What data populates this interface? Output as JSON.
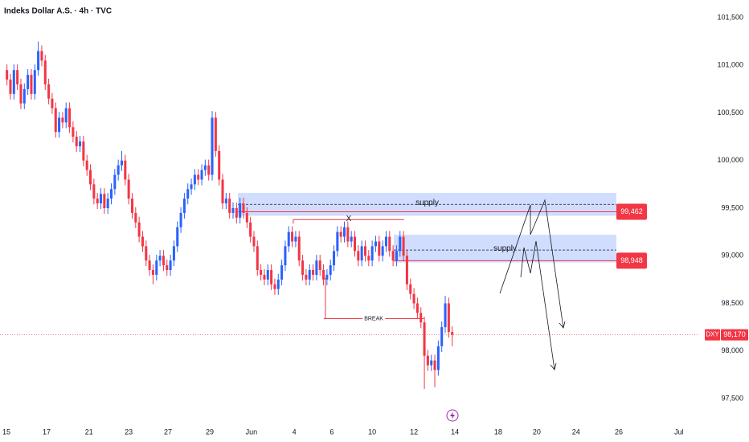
{
  "chart_data": {
    "type": "candlestick",
    "title": "Indeks Dollar A.S. · 4h · TVC",
    "up_color": "#2962ff",
    "down_color": "#f23645",
    "xlim": [
      -2,
      199
    ],
    "ylim": [
      97.255,
      101.686
    ],
    "xticks": [
      {
        "value": -0.15,
        "label": "15"
      },
      {
        "value": 11.4,
        "label": "17"
      },
      {
        "value": 23.6,
        "label": "21"
      },
      {
        "value": 35,
        "label": "23"
      },
      {
        "value": 46.3,
        "label": "27"
      },
      {
        "value": 58.3,
        "label": "29"
      },
      {
        "value": 70.3,
        "label": "Jun"
      },
      {
        "value": 82.6,
        "label": "4"
      },
      {
        "value": 93.4,
        "label": "6"
      },
      {
        "value": 105,
        "label": "10"
      },
      {
        "value": 117,
        "label": "12"
      },
      {
        "value": 128.8,
        "label": "14"
      },
      {
        "value": 141.2,
        "label": "18"
      },
      {
        "value": 152.3,
        "label": "20"
      },
      {
        "value": 163.6,
        "label": "24"
      },
      {
        "value": 175.9,
        "label": "26"
      },
      {
        "value": 193.2,
        "label": "Jul"
      }
    ],
    "yticks": [
      {
        "value": 101.5,
        "label": "101,500"
      },
      {
        "value": 101,
        "label": "101,000"
      },
      {
        "value": 100.5,
        "label": "100,500"
      },
      {
        "value": 100,
        "label": "100,000"
      },
      {
        "value": 99.5,
        "label": "99,500"
      },
      {
        "value": 99,
        "label": "99,000"
      },
      {
        "value": 98.5,
        "label": "98,500"
      },
      {
        "value": 98,
        "label": "98,000"
      },
      {
        "value": 97.5,
        "label": "97,500"
      }
    ],
    "ohlc": [
      [
        100.95,
        101.01,
        100.79,
        100.85
      ],
      [
        100.85,
        100.91,
        100.64,
        100.7
      ],
      [
        100.7,
        101.01,
        100.64,
        100.95
      ],
      [
        100.95,
        101.01,
        100.74,
        100.8
      ],
      [
        100.8,
        100.86,
        100.54,
        100.6
      ],
      [
        100.6,
        100.81,
        100.54,
        100.75
      ],
      [
        100.75,
        100.96,
        100.69,
        100.9
      ],
      [
        100.9,
        100.96,
        100.64,
        100.7
      ],
      [
        100.7,
        101.01,
        100.64,
        100.95
      ],
      [
        100.95,
        101.25,
        100.89,
        101.15
      ],
      [
        101.15,
        101.21,
        100.99,
        101.05
      ],
      [
        101.05,
        101.11,
        100.74,
        100.8
      ],
      [
        100.8,
        100.86,
        100.59,
        100.65
      ],
      [
        100.65,
        100.71,
        100.49,
        100.55
      ],
      [
        100.55,
        100.61,
        100.24,
        100.3
      ],
      [
        100.3,
        100.51,
        100.24,
        100.45
      ],
      [
        100.45,
        100.51,
        100.34,
        100.4
      ],
      [
        100.4,
        100.61,
        100.34,
        100.55
      ],
      [
        100.55,
        100.61,
        100.29,
        100.35
      ],
      [
        100.35,
        100.41,
        100.19,
        100.25
      ],
      [
        100.25,
        100.31,
        100.09,
        100.15
      ],
      [
        100.15,
        100.26,
        100.09,
        100.2
      ],
      [
        100.2,
        100.26,
        99.94,
        100.0
      ],
      [
        100.0,
        100.06,
        99.84,
        99.9
      ],
      [
        99.9,
        99.96,
        99.69,
        99.75
      ],
      [
        99.75,
        99.81,
        99.54,
        99.6
      ],
      [
        99.6,
        99.66,
        99.49,
        99.55
      ],
      [
        99.55,
        99.71,
        99.49,
        99.65
      ],
      [
        99.65,
        99.71,
        99.44,
        99.5
      ],
      [
        99.5,
        99.66,
        99.44,
        99.6
      ],
      [
        99.6,
        99.76,
        99.54,
        99.7
      ],
      [
        99.7,
        99.91,
        99.64,
        99.85
      ],
      [
        99.85,
        100.01,
        99.79,
        99.95
      ],
      [
        99.95,
        100.1,
        99.89,
        100.0
      ],
      [
        100.0,
        100.06,
        99.74,
        99.8
      ],
      [
        99.8,
        99.86,
        99.54,
        99.6
      ],
      [
        99.6,
        99.66,
        99.39,
        99.45
      ],
      [
        99.45,
        99.51,
        99.29,
        99.35
      ],
      [
        99.35,
        99.41,
        99.14,
        99.2
      ],
      [
        99.2,
        99.26,
        99.04,
        99.1
      ],
      [
        99.1,
        99.16,
        98.89,
        98.95
      ],
      [
        98.95,
        99.01,
        98.79,
        98.85
      ],
      [
        98.85,
        98.91,
        98.7,
        98.8
      ],
      [
        98.8,
        99.01,
        98.74,
        98.95
      ],
      [
        98.95,
        99.06,
        98.89,
        99.0
      ],
      [
        99.0,
        99.06,
        98.84,
        98.9
      ],
      [
        98.9,
        98.96,
        98.79,
        98.85
      ],
      [
        98.85,
        99.01,
        98.79,
        98.95
      ],
      [
        98.95,
        99.16,
        98.89,
        99.1
      ],
      [
        99.1,
        99.36,
        99.04,
        99.3
      ],
      [
        99.3,
        99.51,
        99.24,
        99.45
      ],
      [
        99.45,
        99.66,
        99.39,
        99.6
      ],
      [
        99.6,
        99.76,
        99.54,
        99.7
      ],
      [
        99.7,
        99.81,
        99.64,
        99.75
      ],
      [
        99.75,
        99.91,
        99.69,
        99.85
      ],
      [
        99.85,
        99.91,
        99.74,
        99.8
      ],
      [
        99.8,
        99.96,
        99.74,
        99.9
      ],
      [
        99.9,
        100.01,
        99.84,
        99.95
      ],
      [
        99.95,
        100.01,
        99.79,
        99.85
      ],
      [
        99.85,
        100.52,
        99.79,
        100.45
      ],
      [
        100.45,
        100.51,
        100.04,
        100.1
      ],
      [
        100.1,
        100.16,
        99.74,
        99.8
      ],
      [
        99.8,
        99.86,
        99.49,
        99.55
      ],
      [
        99.55,
        99.66,
        99.49,
        99.6
      ],
      [
        99.6,
        99.66,
        99.39,
        99.45
      ],
      [
        99.45,
        99.56,
        99.39,
        99.5
      ],
      [
        99.5,
        99.56,
        99.34,
        99.4
      ],
      [
        99.4,
        99.61,
        99.34,
        99.55
      ],
      [
        99.55,
        99.61,
        99.39,
        99.45
      ],
      [
        99.45,
        99.51,
        99.29,
        99.35
      ],
      [
        99.35,
        99.41,
        99.14,
        99.2
      ],
      [
        99.2,
        99.26,
        99.04,
        99.1
      ],
      [
        99.1,
        99.16,
        98.79,
        98.85
      ],
      [
        98.85,
        98.91,
        98.74,
        98.8
      ],
      [
        98.8,
        98.86,
        98.69,
        98.75
      ],
      [
        98.75,
        98.91,
        98.69,
        98.85
      ],
      [
        98.85,
        98.91,
        98.64,
        98.7
      ],
      [
        98.7,
        98.76,
        98.59,
        98.65
      ],
      [
        98.65,
        98.81,
        98.59,
        98.75
      ],
      [
        98.75,
        98.96,
        98.69,
        98.9
      ],
      [
        98.9,
        99.16,
        98.84,
        99.1
      ],
      [
        99.1,
        99.31,
        99.04,
        99.25
      ],
      [
        99.25,
        99.31,
        99.09,
        99.15
      ],
      [
        99.15,
        99.26,
        99.09,
        99.2
      ],
      [
        99.2,
        99.26,
        98.89,
        98.95
      ],
      [
        98.95,
        99.01,
        98.74,
        98.8
      ],
      [
        98.8,
        98.86,
        98.69,
        98.75
      ],
      [
        98.75,
        98.91,
        98.69,
        98.85
      ],
      [
        98.85,
        98.91,
        98.74,
        98.8
      ],
      [
        98.8,
        99.01,
        98.74,
        98.95
      ],
      [
        98.95,
        99.01,
        98.79,
        98.85
      ],
      [
        98.85,
        98.91,
        98.69,
        98.75
      ],
      [
        98.75,
        98.86,
        98.69,
        98.8
      ],
      [
        98.8,
        98.96,
        98.74,
        98.9
      ],
      [
        98.9,
        99.11,
        98.84,
        99.05
      ],
      [
        99.05,
        99.31,
        98.99,
        99.25
      ],
      [
        99.25,
        99.31,
        99.14,
        99.2
      ],
      [
        99.2,
        99.36,
        99.14,
        99.3
      ],
      [
        99.3,
        99.36,
        99.09,
        99.15
      ],
      [
        99.15,
        99.26,
        99.09,
        99.2
      ],
      [
        99.2,
        99.26,
        98.99,
        99.05
      ],
      [
        99.05,
        99.11,
        98.89,
        98.95
      ],
      [
        98.95,
        99.16,
        98.89,
        99.1
      ],
      [
        99.1,
        99.16,
        98.94,
        99.0
      ],
      [
        99.0,
        99.06,
        98.89,
        98.95
      ],
      [
        98.95,
        99.16,
        98.89,
        99.1
      ],
      [
        99.1,
        99.21,
        99.04,
        99.15
      ],
      [
        99.15,
        99.21,
        98.94,
        99.0
      ],
      [
        99.0,
        99.16,
        98.94,
        99.1
      ],
      [
        99.1,
        99.26,
        99.04,
        99.2
      ],
      [
        99.2,
        99.26,
        98.99,
        99.05
      ],
      [
        99.05,
        99.11,
        98.89,
        98.95
      ],
      [
        98.95,
        99.11,
        98.89,
        99.05
      ],
      [
        99.05,
        99.26,
        98.99,
        99.2
      ],
      [
        99.2,
        99.26,
        98.94,
        99.0
      ],
      [
        99.0,
        99.06,
        98.64,
        98.7
      ],
      [
        98.7,
        98.76,
        98.54,
        98.6
      ],
      [
        98.6,
        98.66,
        98.44,
        98.5
      ],
      [
        98.5,
        98.56,
        98.34,
        98.4
      ],
      [
        98.4,
        98.46,
        98.24,
        98.3
      ],
      [
        98.3,
        98.36,
        97.6,
        97.95
      ],
      [
        97.95,
        98.01,
        97.79,
        97.85
      ],
      [
        97.85,
        97.96,
        97.79,
        97.9
      ],
      [
        97.9,
        97.96,
        97.62,
        97.8
      ],
      [
        97.8,
        98.11,
        97.74,
        98.05
      ],
      [
        98.05,
        98.31,
        97.99,
        98.25
      ],
      [
        98.25,
        98.58,
        98.19,
        98.5
      ],
      [
        98.5,
        98.56,
        98.14,
        98.2
      ],
      [
        98.2,
        98.26,
        98.05,
        98.17
      ]
    ],
    "zones": [
      {
        "label": "supply",
        "ylim": [
          99.42,
          99.66
        ],
        "xlim": [
          66.4,
          175.2
        ],
        "mid": 99.54,
        "level": {
          "value": 99.462,
          "label": "99,462"
        }
      },
      {
        "label": "supply",
        "ylim": [
          98.93,
          99.22
        ],
        "xlim": [
          111.2,
          175.2
        ],
        "mid": 99.06,
        "level": {
          "value": 98.948,
          "label": "98,948"
        }
      }
    ],
    "marker_x": {
      "label": "X",
      "y": 99.38,
      "xlim": [
        82.3,
        114.2
      ]
    },
    "break": {
      "label": "BREAK",
      "y": 98.34,
      "from": 98.77,
      "xlim": [
        91.1,
        119.8
      ]
    },
    "last_price": {
      "symbol": "DXY",
      "value": 98.17,
      "label": "98,170"
    }
  }
}
